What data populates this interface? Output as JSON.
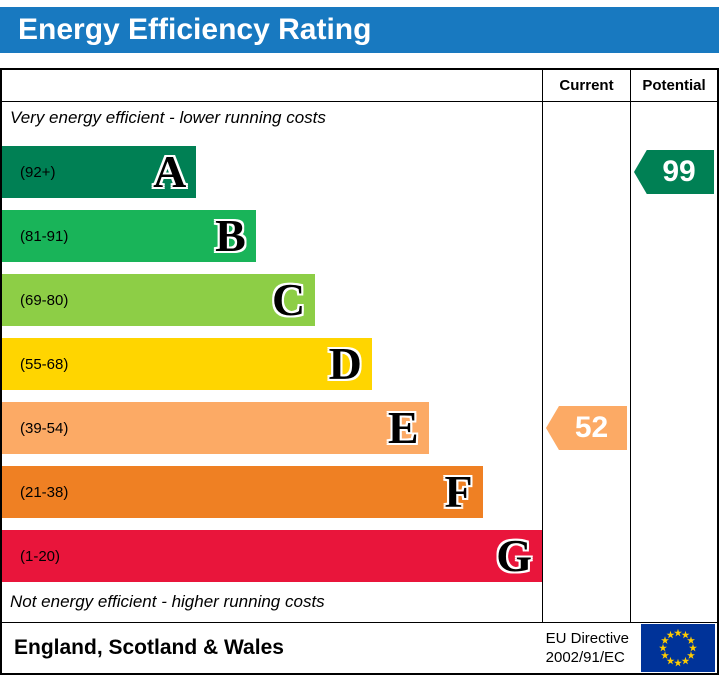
{
  "header": {
    "title": "Energy Efficiency Rating",
    "bg_color": "#1879c0"
  },
  "table": {
    "columns": {
      "current": "Current",
      "potential": "Potential"
    },
    "top_caption": "Very energy efficient - lower running costs",
    "bottom_caption": "Not energy efficient - higher running costs",
    "bands": [
      {
        "letter": "A",
        "range": "(92+)",
        "color": "#008054",
        "width_pct": 36
      },
      {
        "letter": "B",
        "range": "(81-91)",
        "color": "#19b459",
        "width_pct": 47
      },
      {
        "letter": "C",
        "range": "(69-80)",
        "color": "#8dce46",
        "width_pct": 58
      },
      {
        "letter": "D",
        "range": "(55-68)",
        "color": "#ffd500",
        "width_pct": 68.5
      },
      {
        "letter": "E",
        "range": "(39-54)",
        "color": "#fcaa65",
        "width_pct": 79
      },
      {
        "letter": "F",
        "range": "(21-38)",
        "color": "#ef8023",
        "width_pct": 89
      },
      {
        "letter": "G",
        "range": "(1-20)",
        "color": "#e9153b",
        "width_pct": 100
      }
    ],
    "current": {
      "value": "52",
      "band": "E",
      "color": "#fcaa65",
      "row": 4
    },
    "potential": {
      "value": "99",
      "band": "A",
      "color": "#008054",
      "row": 0
    }
  },
  "footer": {
    "region": "England, Scotland & Wales",
    "directive_line1": "EU Directive",
    "directive_line2": "2002/91/EC",
    "flag_bg": "#003399",
    "flag_star_color": "#ffcc00"
  },
  "chart_data": {
    "type": "bar",
    "title": "Energy Efficiency Rating",
    "categories": [
      "A (92+)",
      "B (81-91)",
      "C (69-80)",
      "D (55-68)",
      "E (39-54)",
      "F (21-38)",
      "G (1-20)"
    ],
    "values": [
      36,
      47,
      58,
      68.5,
      79,
      89,
      100
    ],
    "band_colors": [
      "#008054",
      "#19b459",
      "#8dce46",
      "#ffd500",
      "#fcaa65",
      "#ef8023",
      "#e9153b"
    ],
    "series": [
      {
        "name": "Current",
        "value": 52,
        "band": "E"
      },
      {
        "name": "Potential",
        "value": 99,
        "band": "A"
      }
    ],
    "top_annotation": "Very energy efficient - lower running costs",
    "bottom_annotation": "Not energy efficient - higher running costs",
    "footnote": "England, Scotland & Wales — EU Directive 2002/91/EC"
  }
}
